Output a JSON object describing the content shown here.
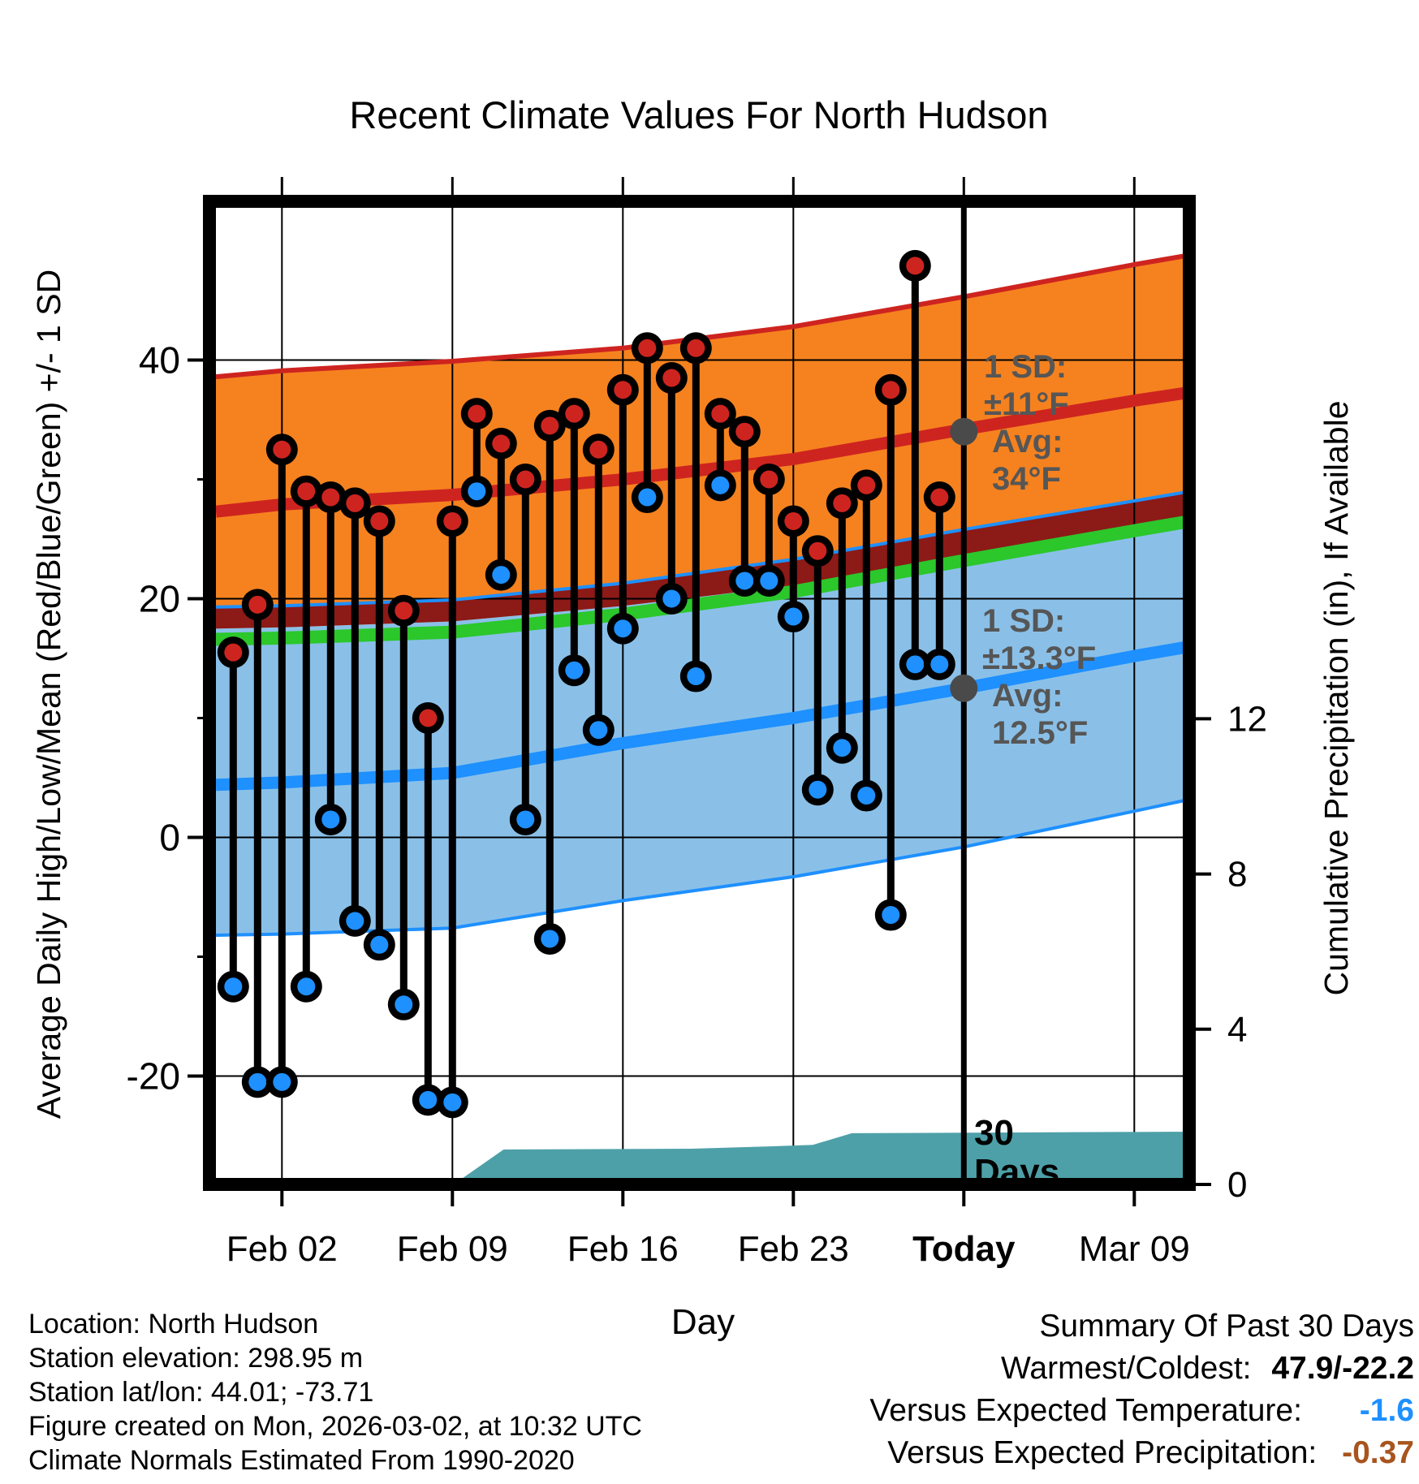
{
  "title": "Recent Climate Values For North Hudson",
  "axes": {
    "y_left": {
      "label": "Average Daily High/Low/Mean (Red/Blue/Green) +/- 1 SD",
      "ticks": [
        40,
        20,
        0,
        -20
      ],
      "minor_ticks": [
        30,
        10,
        -10
      ]
    },
    "y_right": {
      "label": "Cumulative Precipitation (in), If Available",
      "ticks": [
        12,
        8,
        4,
        0
      ]
    },
    "x": {
      "label": "Day",
      "tick_labels": [
        "Feb 02",
        "Feb 09",
        "Feb 16",
        "Feb 23",
        "Today",
        "Mar 09"
      ],
      "tick_days": [
        2,
        9,
        16,
        23,
        30,
        37
      ],
      "tick_bold": [
        false,
        false,
        false,
        false,
        true,
        false
      ]
    }
  },
  "annotations": {
    "high": {
      "sd_label": "1 SD:",
      "sd_value": "±11°F",
      "avg_label": "Avg:",
      "avg_value": "34°F",
      "avg_num": 34
    },
    "low": {
      "sd_label": "1 SD:",
      "sd_value": "±13.3°F",
      "avg_label": "Avg:",
      "avg_value": "12.5°F",
      "avg_num": 12.5
    },
    "window_line1": "30",
    "window_line2": "Days"
  },
  "footer_left": {
    "location": "Location: North Hudson",
    "elevation": "Station elevation: 298.95 m",
    "latlon": "Station lat/lon: 44.01; -73.71",
    "created": "Figure created on Mon, 2026-03-02, at 10:32 UTC",
    "normals": "Climate Normals Estimated From 1990-2020"
  },
  "summary": {
    "heading": "Summary Of Past 30 Days",
    "warmest_coldest_label": "Warmest/Coldest:",
    "warmest_coldest_value": "47.9/-22.2",
    "vs_temp_label": "Versus Expected Temperature:",
    "vs_temp_value": "-1.6",
    "vs_precip_label": "Versus Expected Precipitation:",
    "vs_precip_value": "-0.37"
  },
  "colors": {
    "orange_band": "#F5821F",
    "red": "#CE2420",
    "dark_red": "#8C1A17",
    "green": "#2BC72B",
    "light_blue_band": "#8AC0E8",
    "blue": "#1E90FF",
    "teal": "#4EA0A8",
    "gray": "#565656",
    "vs_temp_color": "#1E90FF",
    "vs_precip_color": "#A8541E"
  },
  "chart_data": {
    "type": "combo",
    "title": "Recent Climate Values For North Hudson",
    "xlabel": "Day",
    "ylabel_left": "Average Daily High/Low/Mean (Red/Blue/Green) +/- 1 SD",
    "ylabel_right": "Cumulative Precipitation (in), If Available",
    "ylim_left_ticks": [
      40,
      20,
      0,
      -20
    ],
    "ylim_right_ticks": [
      0,
      4,
      8,
      12
    ],
    "daily": {
      "dates": [
        "Jan 31",
        "Feb 01",
        "Feb 02",
        "Feb 03",
        "Feb 04",
        "Feb 05",
        "Feb 06",
        "Feb 07",
        "Feb 08",
        "Feb 09",
        "Feb 10",
        "Feb 11",
        "Feb 12",
        "Feb 13",
        "Feb 14",
        "Feb 15",
        "Feb 16",
        "Feb 17",
        "Feb 18",
        "Feb 19",
        "Feb 20",
        "Feb 21",
        "Feb 22",
        "Feb 23",
        "Feb 24",
        "Feb 25",
        "Feb 26",
        "Feb 27",
        "Feb 28",
        "Mar 01"
      ],
      "high_f": [
        15.5,
        19.5,
        32.5,
        29,
        28.5,
        28,
        26.5,
        19,
        10,
        26.5,
        35.5,
        33,
        30,
        34.5,
        35.5,
        32.5,
        37.5,
        41,
        38.5,
        41,
        35.5,
        34,
        30,
        26.5,
        24,
        28,
        29.5,
        37.5,
        47.9,
        28.5
      ],
      "low_f": [
        -12.5,
        -20.5,
        -20.5,
        -12.5,
        1.5,
        -7,
        -9,
        -14,
        -22,
        -22.2,
        29,
        22,
        1.5,
        -8.5,
        14,
        9,
        17.5,
        28.5,
        20,
        13.5,
        29.5,
        21.5,
        21.5,
        18.5,
        4,
        7.5,
        3.5,
        -6.5,
        14.5,
        14.5
      ]
    },
    "normals": {
      "anchors_day": [
        -0.71,
        2,
        9,
        16,
        23,
        30,
        37,
        39.3
      ],
      "high_plus_sd": [
        38.6,
        39.1,
        39.9,
        41.0,
        42.8,
        45.3,
        48.0,
        48.8
      ],
      "avg_high": [
        27.3,
        27.9,
        28.7,
        30.0,
        31.7,
        34.2,
        36.6,
        37.3
      ],
      "high_minus_sd": [
        17.5,
        17.6,
        18.1,
        19.4,
        21.1,
        23.1,
        25.6,
        26.3
      ],
      "low_plus_sd": [
        19.3,
        19.4,
        19.9,
        21.3,
        23.3,
        25.8,
        28.2,
        29.0
      ],
      "avg_low": [
        4.4,
        4.6,
        5.4,
        7.9,
        10.0,
        12.5,
        15.2,
        16.0
      ],
      "low_minus_sd": [
        -8.2,
        -8.1,
        -7.6,
        -5.3,
        -3.3,
        -0.8,
        2.2,
        3.2
      ],
      "mean": [
        16.6,
        16.7,
        17.2,
        18.7,
        20.6,
        23.2,
        25.7,
        26.5
      ]
    },
    "precip_curve": {
      "day": [
        9.05,
        11.1,
        18.8,
        21.9,
        23.8,
        25.4,
        39.3
      ],
      "cumulative_in": [
        0,
        0.9,
        0.92,
        0.98,
        1.02,
        1.32,
        1.36
      ]
    },
    "today_day_index": 30,
    "today_avg_high": 34,
    "today_avg_low": 12.5
  }
}
